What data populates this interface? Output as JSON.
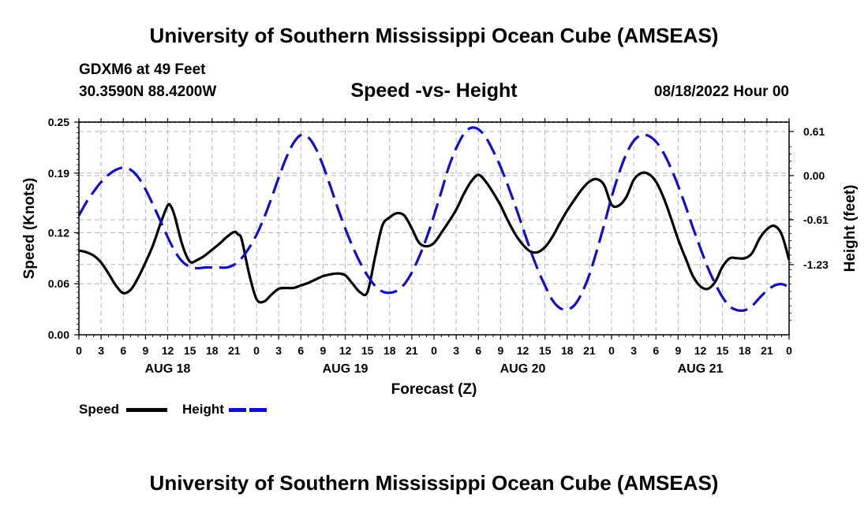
{
  "page": {
    "title": "University of Southern Mississippi Ocean Cube (AMSEAS)",
    "footer_title": "University of Southern Mississippi Ocean Cube (AMSEAS)",
    "station": "GDXM6 at 49 Feet",
    "coords": "30.3590N  88.4200W",
    "subtitle": "Speed -vs- Height",
    "datetime": "08/18/2022 Hour 00"
  },
  "colors": {
    "speed": "#000000",
    "height": "#1010c8",
    "grid": "#b4b4b4"
  },
  "chart_data": {
    "type": "line",
    "xlabel": "Forecast (Z)",
    "ylabel": "Speed (Knots)",
    "y2label": "Height (feet)",
    "xlim": [
      0,
      96
    ],
    "ylim": [
      0,
      0.25
    ],
    "y2lim": [
      -2.2,
      0.74
    ],
    "x_ticks": [
      0,
      3,
      6,
      9,
      12,
      15,
      18,
      21,
      24,
      27,
      30,
      33,
      36,
      39,
      42,
      45,
      48,
      51,
      54,
      57,
      60,
      63,
      66,
      69,
      72,
      75,
      78,
      81,
      84,
      87,
      90,
      93,
      96
    ],
    "x_tick_labels": [
      "0",
      "3",
      "6",
      "9",
      "12",
      "15",
      "18",
      "21",
      "0",
      "3",
      "6",
      "9",
      "12",
      "15",
      "18",
      "21",
      "0",
      "3",
      "6",
      "9",
      "12",
      "15",
      "18",
      "21",
      "0",
      "3",
      "6",
      "9",
      "12",
      "15",
      "18",
      "21",
      "0"
    ],
    "day_labels": [
      {
        "label": "AUG 18",
        "x": 12
      },
      {
        "label": "AUG 19",
        "x": 36
      },
      {
        "label": "AUG 20",
        "x": 60
      },
      {
        "label": "AUG 21",
        "x": 84
      }
    ],
    "y_ticks": [
      0.0,
      0.06,
      0.12,
      0.19,
      0.25
    ],
    "y_tick_labels": [
      "0.00",
      "0.06",
      "0.12",
      "0.19",
      "0.25"
    ],
    "y2_ticks": [
      0.61,
      0.0,
      -0.61,
      -1.23
    ],
    "y2_tick_labels": [
      "0.61",
      "0.00",
      "-0.61",
      "-1.23"
    ],
    "grid": true,
    "series": [
      {
        "name": "Speed",
        "axis": "left",
        "style": "solid",
        "points": [
          [
            0,
            0.099
          ],
          [
            1,
            0.097
          ],
          [
            2,
            0.093
          ],
          [
            3,
            0.085
          ],
          [
            4,
            0.072
          ],
          [
            5,
            0.058
          ],
          [
            6,
            0.049
          ],
          [
            7,
            0.053
          ],
          [
            8,
            0.067
          ],
          [
            9,
            0.085
          ],
          [
            10,
            0.105
          ],
          [
            11,
            0.13
          ],
          [
            12,
            0.152
          ],
          [
            12.5,
            0.15
          ],
          [
            13,
            0.138
          ],
          [
            14,
            0.105
          ],
          [
            15,
            0.086
          ],
          [
            16,
            0.088
          ],
          [
            17,
            0.093
          ],
          [
            18,
            0.1
          ],
          [
            19,
            0.107
          ],
          [
            20,
            0.115
          ],
          [
            21,
            0.121
          ],
          [
            21.5,
            0.118
          ],
          [
            22,
            0.112
          ],
          [
            23,
            0.072
          ],
          [
            24,
            0.042
          ],
          [
            25,
            0.039
          ],
          [
            26,
            0.047
          ],
          [
            27,
            0.054
          ],
          [
            28,
            0.055
          ],
          [
            29,
            0.055
          ],
          [
            30,
            0.058
          ],
          [
            31,
            0.061
          ],
          [
            32,
            0.065
          ],
          [
            33,
            0.069
          ],
          [
            34,
            0.071
          ],
          [
            35,
            0.072
          ],
          [
            36,
            0.07
          ],
          [
            37,
            0.06
          ],
          [
            38,
            0.05
          ],
          [
            39,
            0.05
          ],
          [
            40,
            0.09
          ],
          [
            41,
            0.128
          ],
          [
            42,
            0.138
          ],
          [
            43,
            0.143
          ],
          [
            44,
            0.14
          ],
          [
            45,
            0.125
          ],
          [
            46,
            0.108
          ],
          [
            47,
            0.104
          ],
          [
            48,
            0.108
          ],
          [
            49,
            0.12
          ],
          [
            50,
            0.133
          ],
          [
            51,
            0.147
          ],
          [
            52,
            0.165
          ],
          [
            53,
            0.18
          ],
          [
            54,
            0.188
          ],
          [
            55,
            0.18
          ],
          [
            56,
            0.167
          ],
          [
            57,
            0.152
          ],
          [
            58,
            0.134
          ],
          [
            59,
            0.118
          ],
          [
            60,
            0.106
          ],
          [
            61,
            0.098
          ],
          [
            62,
            0.097
          ],
          [
            63,
            0.103
          ],
          [
            64,
            0.115
          ],
          [
            65,
            0.131
          ],
          [
            66,
            0.146
          ],
          [
            67,
            0.159
          ],
          [
            68,
            0.171
          ],
          [
            69,
            0.18
          ],
          [
            70,
            0.183
          ],
          [
            71,
            0.176
          ],
          [
            72,
            0.153
          ],
          [
            73,
            0.152
          ],
          [
            74,
            0.162
          ],
          [
            75,
            0.182
          ],
          [
            76,
            0.19
          ],
          [
            77,
            0.189
          ],
          [
            78,
            0.18
          ],
          [
            79,
            0.162
          ],
          [
            80,
            0.138
          ],
          [
            81,
            0.112
          ],
          [
            82,
            0.09
          ],
          [
            83,
            0.069
          ],
          [
            84,
            0.057
          ],
          [
            85,
            0.054
          ],
          [
            86,
            0.062
          ],
          [
            87,
            0.08
          ],
          [
            88,
            0.09
          ],
          [
            89,
            0.09
          ],
          [
            90,
            0.09
          ],
          [
            91,
            0.096
          ],
          [
            92,
            0.113
          ],
          [
            93,
            0.124
          ],
          [
            94,
            0.128
          ],
          [
            95,
            0.118
          ],
          [
            96,
            0.088
          ]
        ]
      },
      {
        "name": "Height",
        "axis": "right",
        "style": "dashed",
        "points": [
          [
            0,
            -0.55
          ],
          [
            1,
            -0.37
          ],
          [
            2,
            -0.22
          ],
          [
            3,
            -0.09
          ],
          [
            4,
            0.01
          ],
          [
            5,
            0.08
          ],
          [
            6,
            0.11
          ],
          [
            7,
            0.08
          ],
          [
            8,
            -0.02
          ],
          [
            9,
            -0.19
          ],
          [
            10,
            -0.4
          ],
          [
            11,
            -0.62
          ],
          [
            12,
            -0.85
          ],
          [
            13,
            -1.05
          ],
          [
            14,
            -1.19
          ],
          [
            15,
            -1.26
          ],
          [
            16,
            -1.28
          ],
          [
            17,
            -1.27
          ],
          [
            18,
            -1.27
          ],
          [
            19,
            -1.27
          ],
          [
            20,
            -1.27
          ],
          [
            21,
            -1.23
          ],
          [
            22,
            -1.14
          ],
          [
            23,
            -1.0
          ],
          [
            24,
            -0.82
          ],
          [
            25,
            -0.59
          ],
          [
            26,
            -0.32
          ],
          [
            27,
            -0.03
          ],
          [
            28,
            0.24
          ],
          [
            29,
            0.45
          ],
          [
            30,
            0.56
          ],
          [
            31,
            0.53
          ],
          [
            32,
            0.38
          ],
          [
            33,
            0.14
          ],
          [
            34,
            -0.15
          ],
          [
            35,
            -0.45
          ],
          [
            36,
            -0.73
          ],
          [
            37,
            -0.98
          ],
          [
            38,
            -1.2
          ],
          [
            39,
            -1.38
          ],
          [
            40,
            -1.52
          ],
          [
            41,
            -1.6
          ],
          [
            42,
            -1.62
          ],
          [
            43,
            -1.59
          ],
          [
            44,
            -1.5
          ],
          [
            45,
            -1.34
          ],
          [
            46,
            -1.12
          ],
          [
            47,
            -0.86
          ],
          [
            48,
            -0.55
          ],
          [
            49,
            -0.22
          ],
          [
            50,
            0.12
          ],
          [
            51,
            0.38
          ],
          [
            52,
            0.57
          ],
          [
            53,
            0.66
          ],
          [
            54,
            0.64
          ],
          [
            55,
            0.53
          ],
          [
            56,
            0.34
          ],
          [
            57,
            0.12
          ],
          [
            58,
            -0.14
          ],
          [
            59,
            -0.42
          ],
          [
            60,
            -0.72
          ],
          [
            61,
            -1.02
          ],
          [
            62,
            -1.29
          ],
          [
            63,
            -1.52
          ],
          [
            64,
            -1.72
          ],
          [
            65,
            -1.83
          ],
          [
            66,
            -1.85
          ],
          [
            67,
            -1.79
          ],
          [
            68,
            -1.62
          ],
          [
            69,
            -1.37
          ],
          [
            70,
            -1.04
          ],
          [
            71,
            -0.68
          ],
          [
            72,
            -0.3
          ],
          [
            73,
            0.03
          ],
          [
            74,
            0.3
          ],
          [
            75,
            0.48
          ],
          [
            76,
            0.56
          ],
          [
            77,
            0.55
          ],
          [
            78,
            0.47
          ],
          [
            79,
            0.32
          ],
          [
            80,
            0.11
          ],
          [
            81,
            -0.14
          ],
          [
            82,
            -0.42
          ],
          [
            83,
            -0.72
          ],
          [
            84,
            -1.0
          ],
          [
            85,
            -1.27
          ],
          [
            86,
            -1.49
          ],
          [
            87,
            -1.68
          ],
          [
            88,
            -1.81
          ],
          [
            89,
            -1.86
          ],
          [
            90,
            -1.86
          ],
          [
            91,
            -1.8
          ],
          [
            92,
            -1.69
          ],
          [
            93,
            -1.59
          ],
          [
            94,
            -1.52
          ],
          [
            95,
            -1.5
          ],
          [
            96,
            -1.54
          ]
        ]
      }
    ],
    "legend": [
      {
        "label": "Speed",
        "color": "#000000",
        "style": "solid"
      },
      {
        "label": "Height",
        "color": "#1010c8",
        "style": "dashed"
      }
    ]
  }
}
